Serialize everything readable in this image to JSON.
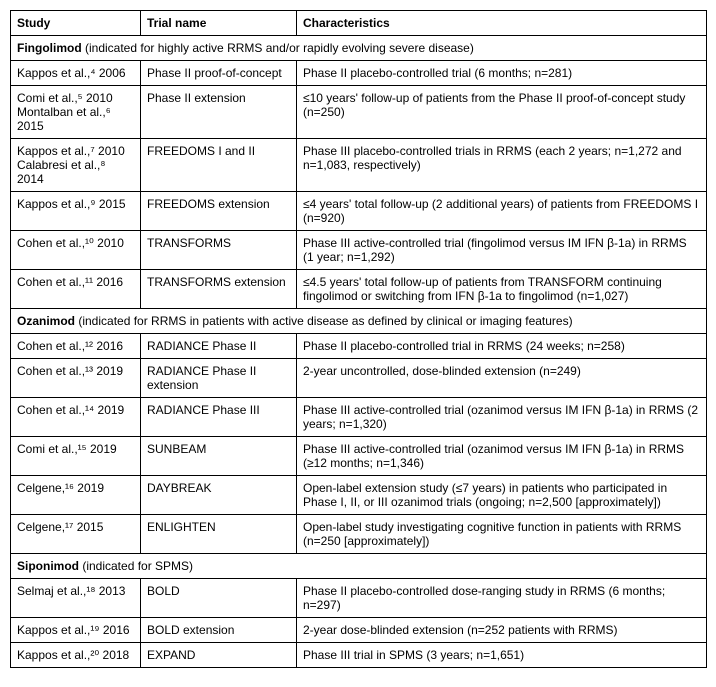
{
  "columns": {
    "study": "Study",
    "trial": "Trial name",
    "char": "Characteristics"
  },
  "sections": [
    {
      "drug": "Fingolimod",
      "indication": " (indicated for highly active RRMS and/or rapidly evolving severe disease)",
      "rows": [
        {
          "study": "Kappos et al.,⁴ 2006",
          "trial": "Phase II proof-of-concept",
          "char": "Phase II placebo-controlled trial (6 months; n=281)"
        },
        {
          "study": "Comi et al.,⁵ 2010\nMontalban et al.,⁶ 2015",
          "trial": "Phase II extension",
          "char": "≤10 years' follow-up of patients from the Phase II proof-of-concept study (n=250)"
        },
        {
          "study": "Kappos et al.,⁷ 2010\nCalabresi et al.,⁸ 2014",
          "trial": "FREEDOMS I and II",
          "char": "Phase III placebo-controlled trials in RRMS (each 2 years; n=1,272 and n=1,083, respectively)"
        },
        {
          "study": "Kappos et al.,⁹ 2015",
          "trial": "FREEDOMS extension",
          "char": "≤4 years' total follow-up (2 additional years) of patients from FREEDOMS I (n=920)"
        },
        {
          "study": "Cohen et al.,¹⁰ 2010",
          "trial": "TRANSFORMS",
          "char": "Phase III active-controlled trial (fingolimod versus IM IFN β-1a) in RRMS (1 year; n=1,292)"
        },
        {
          "study": "Cohen et al.,¹¹ 2016",
          "trial": "TRANSFORMS extension",
          "char": "≤4.5 years' total follow-up of patients from TRANSFORM continuing fingolimod or switching from IFN β-1a to fingolimod (n=1,027)"
        }
      ]
    },
    {
      "drug": "Ozanimod",
      "indication": " (indicated for RRMS in patients with active disease as defined by clinical or imaging features)",
      "rows": [
        {
          "study": "Cohen et al.,¹² 2016",
          "trial": "RADIANCE Phase II",
          "char": "Phase II placebo-controlled trial in RRMS (24 weeks; n=258)"
        },
        {
          "study": "Cohen et al.,¹³ 2019",
          "trial": "RADIANCE Phase II extension",
          "char": "2-year uncontrolled, dose-blinded extension (n=249)"
        },
        {
          "study": "Cohen et al.,¹⁴ 2019",
          "trial": "RADIANCE Phase III",
          "char": "Phase III active-controlled trial (ozanimod versus IM IFN β-1a) in RRMS (2 years; n=1,320)"
        },
        {
          "study": "Comi et al.,¹⁵ 2019",
          "trial": "SUNBEAM",
          "char": "Phase III active-controlled trial (ozanimod versus IM IFN β-1a) in RRMS (≥12 months; n=1,346)"
        },
        {
          "study": "Celgene,¹⁶ 2019",
          "trial": "DAYBREAK",
          "char": "Open-label extension study (≤7 years) in patients who participated in Phase I, II, or III ozanimod trials (ongoing; n=2,500 [approximately])"
        },
        {
          "study": "Celgene,¹⁷ 2015",
          "trial": "ENLIGHTEN",
          "char": "Open-label study investigating cognitive function in patients with RRMS (n=250 [approximately])"
        }
      ]
    },
    {
      "drug": "Siponimod",
      "indication": " (indicated for SPMS)",
      "rows": [
        {
          "study": "Selmaj et al.,¹⁸ 2013",
          "trial": "BOLD",
          "char": "Phase II placebo-controlled dose-ranging study in RRMS (6 months; n=297)"
        },
        {
          "study": "Kappos et al.,¹⁹ 2016",
          "trial": "BOLD extension",
          "char": "2-year dose-blinded extension (n=252 patients with RRMS)"
        },
        {
          "study": "Kappos et al.,²⁰ 2018",
          "trial": "EXPAND",
          "char": "Phase III trial in SPMS (3 years; n=1,651)"
        }
      ]
    }
  ]
}
